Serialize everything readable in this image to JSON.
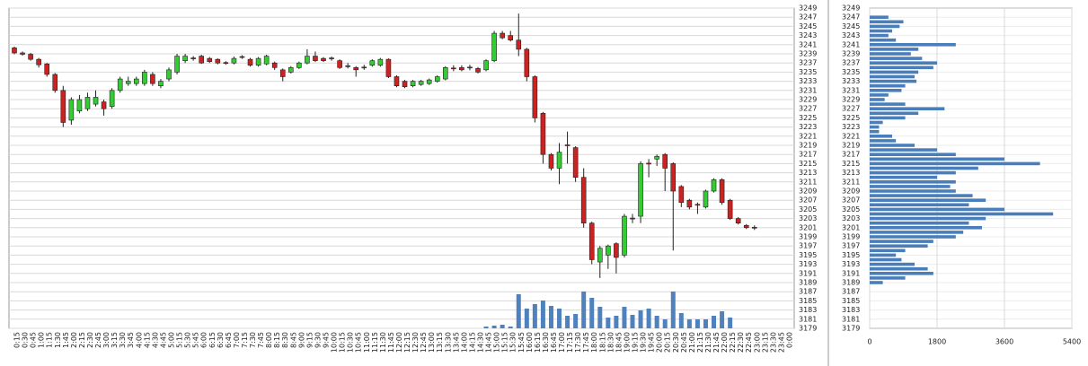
{
  "chart_data": [
    {
      "type": "candlestick",
      "categories": [
        "0:15",
        "0:30",
        "0:45",
        "1:00",
        "1:15",
        "1:30",
        "1:45",
        "2:00",
        "2:15",
        "2:30",
        "2:45",
        "3:00",
        "3:15",
        "3:30",
        "3:45",
        "4:00",
        "4:15",
        "4:30",
        "4:45",
        "5:00",
        "5:15",
        "5:30",
        "5:45",
        "6:00",
        "6:15",
        "6:30",
        "6:45",
        "7:00",
        "7:15",
        "7:30",
        "7:45",
        "8:00",
        "8:15",
        "8:30",
        "8:45",
        "9:00",
        "9:15",
        "9:30",
        "9:45",
        "10:00",
        "10:15",
        "10:30",
        "10:45",
        "11:00",
        "11:15",
        "11:30",
        "11:45",
        "12:00",
        "12:15",
        "12:30",
        "12:45",
        "13:00",
        "13:15",
        "13:30",
        "13:45",
        "14:00",
        "14:15",
        "14:30",
        "14:45",
        "15:00",
        "15:15",
        "15:30",
        "15:45",
        "16:00",
        "16:15",
        "16:30",
        "16:45",
        "17:00",
        "17:15",
        "17:30",
        "17:45",
        "18:00",
        "18:15",
        "18:30",
        "18:45",
        "19:00",
        "19:15",
        "19:30",
        "19:45",
        "20:00",
        "20:15",
        "20:30",
        "20:45",
        "21:00",
        "21:15",
        "21:30",
        "21:45",
        "22:00",
        "22:15",
        "22:30",
        "22:45",
        "23:00",
        "23:15",
        "23:30",
        "23:45",
        "0:00"
      ],
      "open": [
        3240.3,
        3239.2,
        3238.9,
        3237.8,
        3236.8,
        3234.5,
        3231,
        3224.5,
        3226.5,
        3227,
        3228,
        3228.5,
        3227.5,
        3231,
        3232.5,
        3232.5,
        3232.5,
        3234.5,
        3232,
        3233.5,
        3235,
        3237.5,
        3238.1,
        3238.5,
        3238,
        3237.8,
        3237.1,
        3237,
        3238.4,
        3237.8,
        3236.5,
        3236.8,
        3237,
        3235.5,
        3235,
        3236,
        3237,
        3238.5,
        3238,
        3238.1,
        3237.5,
        3236.4,
        3236,
        3236.1,
        3236.5,
        3236.5,
        3237.8,
        3234,
        3233,
        3232,
        3232.3,
        3232.5,
        3233,
        3233.5,
        3235.9,
        3236,
        3236.1,
        3235.8,
        3235.5,
        3237.5,
        3243.5,
        3243,
        3242,
        3240,
        3234,
        3226,
        3217,
        3214,
        3219.1,
        3218.5,
        3212,
        3202,
        3193.5,
        3195,
        3197.5,
        3195,
        3203.1,
        3203.5,
        3215.1,
        3216,
        3217,
        3215,
        3210,
        3207,
        3206.1,
        3205.5,
        3209,
        3211.5,
        3207,
        3203,
        3201.5,
        3201.1,
        null,
        null,
        null,
        null
      ],
      "high": [
        3240.6,
        3239.5,
        3239.2,
        3238.1,
        3237,
        3234.8,
        3232,
        3229.5,
        3230,
        3230.5,
        3231,
        3229,
        3231.5,
        3234,
        3234,
        3234,
        3235.5,
        3235,
        3233.5,
        3236,
        3239,
        3239,
        3238.5,
        3238.8,
        3238.3,
        3238,
        3237.4,
        3238.4,
        3238.7,
        3238.1,
        3238.3,
        3238.8,
        3237.3,
        3235.8,
        3236.3,
        3237.3,
        3240,
        3239.5,
        3238.3,
        3238.4,
        3237.8,
        3237,
        3236.3,
        3236.6,
        3237.8,
        3238.1,
        3238,
        3234.3,
        3233.3,
        3233.3,
        3233.3,
        3233.6,
        3234.3,
        3236.3,
        3236.5,
        3236.5,
        3236.6,
        3236.1,
        3237.8,
        3244,
        3244,
        3244,
        3247.8,
        3240.3,
        3234.3,
        3226.3,
        3217.3,
        3219.5,
        3222,
        3218.8,
        3214,
        3202.3,
        3197,
        3197.3,
        3197.8,
        3204,
        3204,
        3215.5,
        3216,
        3217,
        3217.3,
        3215.3,
        3210.3,
        3207.3,
        3206.5,
        3209.3,
        3211.8,
        3211.8,
        3207.3,
        3203.3,
        3201.8,
        3201.5,
        null,
        null,
        null,
        null
      ],
      "low": [
        3238.9,
        3238.6,
        3237.5,
        3236,
        3234,
        3230.5,
        3223,
        3223.5,
        3226,
        3226.5,
        3227.5,
        3225.5,
        3227,
        3230.5,
        3232,
        3232,
        3232,
        3232,
        3231.5,
        3233,
        3234.5,
        3237,
        3237.5,
        3236.8,
        3237,
        3236.7,
        3236.6,
        3236.7,
        3237.9,
        3236.2,
        3236.2,
        3236.5,
        3235.5,
        3233,
        3234.7,
        3235.7,
        3236.7,
        3237.2,
        3237.2,
        3237.5,
        3235.7,
        3235.8,
        3234,
        3235.5,
        3236.2,
        3236.2,
        3233.7,
        3231.7,
        3231.5,
        3231.7,
        3232,
        3232.2,
        3232.7,
        3233.2,
        3235.2,
        3235.2,
        3235.4,
        3234.7,
        3235.2,
        3237.2,
        3242.2,
        3241.7,
        3238.5,
        3233,
        3224,
        3215,
        3213.5,
        3210.5,
        3215,
        3211,
        3201,
        3193,
        3190,
        3192,
        3191,
        3194.5,
        3202,
        3202,
        3212,
        3214.5,
        3209,
        3196,
        3205.5,
        3205,
        3204,
        3205.2,
        3208.7,
        3206,
        3202.7,
        3201.7,
        3200.7,
        3200.5,
        null,
        null,
        null,
        null
      ],
      "close": [
        3239.2,
        3238.9,
        3237.8,
        3236.6,
        3234.5,
        3231,
        3224,
        3229,
        3229,
        3229.5,
        3229.5,
        3227,
        3231,
        3233.5,
        3233,
        3233.5,
        3235,
        3232.5,
        3233,
        3235.5,
        3238.5,
        3238.5,
        3237.9,
        3237,
        3237.3,
        3237,
        3236.9,
        3238,
        3238.2,
        3236.5,
        3238,
        3238.5,
        3236,
        3234,
        3236,
        3237,
        3238.5,
        3237.5,
        3237.5,
        3237.9,
        3236,
        3236.2,
        3235.5,
        3235.9,
        3237.5,
        3237.8,
        3234,
        3232,
        3231.8,
        3233,
        3233,
        3233.3,
        3234,
        3236,
        3235.7,
        3235.5,
        3235.9,
        3235,
        3237.5,
        3243.5,
        3242.5,
        3242,
        3240,
        3234,
        3225,
        3217,
        3214,
        3217.5,
        3218.9,
        3212,
        3202,
        3194,
        3196.5,
        3197,
        3194.5,
        3203.5,
        3202.9,
        3215,
        3214.9,
        3216.6,
        3214,
        3209,
        3206.5,
        3205.5,
        3205.9,
        3209,
        3211.5,
        3206.5,
        3203,
        3202,
        3201,
        3200.9,
        null,
        null,
        null,
        null
      ],
      "volume": [
        0,
        0,
        0,
        0,
        0,
        0,
        0,
        0,
        0,
        0,
        0,
        0,
        0,
        0,
        0,
        0,
        0,
        0,
        0,
        0,
        0,
        0,
        0,
        0,
        0,
        0,
        0,
        0,
        0,
        0,
        0,
        0,
        0,
        0,
        0,
        0,
        0,
        0,
        0,
        0,
        0,
        0,
        0,
        0,
        0,
        0,
        0,
        0,
        0,
        0,
        0,
        0,
        0,
        0,
        0,
        0,
        0,
        0,
        2,
        3,
        4,
        2,
        38,
        22,
        27,
        31,
        25,
        22,
        14,
        16,
        41,
        34,
        24,
        12,
        14,
        24,
        15,
        20,
        22,
        14,
        10,
        41,
        17,
        10,
        10,
        10,
        14,
        19,
        12,
        0,
        0,
        0,
        null,
        null,
        null,
        null
      ],
      "ylim": [
        3179,
        3249
      ],
      "yticks": [
        3179,
        3181,
        3183,
        3185,
        3187,
        3189,
        3191,
        3193,
        3195,
        3197,
        3199,
        3201,
        3203,
        3205,
        3207,
        3209,
        3211,
        3213,
        3215,
        3217,
        3219,
        3221,
        3223,
        3225,
        3227,
        3229,
        3231,
        3233,
        3235,
        3237,
        3239,
        3241,
        3243,
        3245,
        3247,
        3249
      ],
      "grid": true,
      "up_color": "#33cc33",
      "down_color": "#cc2222",
      "volume_color": "#4f81bd"
    },
    {
      "type": "barh",
      "y": [
        3247,
        3246,
        3245,
        3244,
        3243,
        3242,
        3241,
        3240,
        3239,
        3238,
        3237,
        3236,
        3235,
        3234,
        3233,
        3232,
        3231,
        3230,
        3229,
        3228,
        3227,
        3226,
        3225,
        3224,
        3223,
        3222,
        3221,
        3220,
        3219,
        3218,
        3217,
        3216,
        3215,
        3214,
        3213,
        3212,
        3211,
        3210,
        3209,
        3208,
        3207,
        3206,
        3205,
        3204,
        3203,
        3202,
        3201,
        3200,
        3199,
        3198,
        3197,
        3196,
        3195,
        3194,
        3193,
        3192,
        3191,
        3190,
        3189
      ],
      "values": [
        500,
        900,
        800,
        600,
        500,
        700,
        2300,
        1300,
        1100,
        1400,
        1800,
        1700,
        1300,
        1200,
        1250,
        950,
        850,
        500,
        400,
        950,
        2000,
        1300,
        950,
        350,
        250,
        250,
        600,
        700,
        1200,
        1800,
        2300,
        3600,
        4550,
        2900,
        2300,
        1800,
        2300,
        2150,
        2300,
        2750,
        3100,
        2650,
        3600,
        4900,
        3100,
        2650,
        3000,
        2500,
        2300,
        1700,
        1550,
        950,
        700,
        850,
        1200,
        1550,
        1700,
        950,
        350
      ],
      "xlim": [
        0,
        5400
      ],
      "xticks": [
        0,
        1800,
        3600,
        5400
      ],
      "ylim": [
        3179,
        3249
      ],
      "yticks": [
        3179,
        3181,
        3183,
        3185,
        3187,
        3189,
        3191,
        3193,
        3195,
        3197,
        3199,
        3201,
        3203,
        3205,
        3207,
        3209,
        3211,
        3213,
        3215,
        3217,
        3219,
        3221,
        3223,
        3225,
        3227,
        3229,
        3231,
        3233,
        3235,
        3237,
        3239,
        3241,
        3243,
        3245,
        3247,
        3249
      ],
      "grid": true,
      "color": "#4a7ebb"
    }
  ]
}
